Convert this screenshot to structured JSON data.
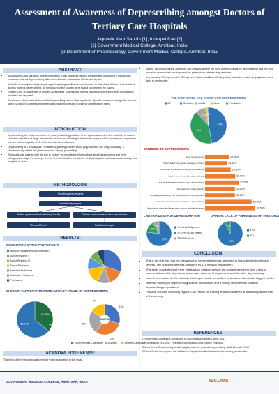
{
  "header": {
    "title": "Assessment of Awareness of Deprescribing amongst Doctors of Tertiary Care Hospitals",
    "authors": "Japmehr Kaur Sandhu[1], Inderpal Kaur[2]",
    "affiliations": [
      "[1] Government Medical College, Amritsar, India;",
      "[2]Department of Pharmacology, Government Medical College, Amritsar, India"
    ]
  },
  "abstract": {
    "heading": "ABSTRACT:",
    "items": [
      "Background: Drug utilization research presents a way to assess rational drug therapy in a patient. This includes measures such as deprescribing, taken to ameliorate undesirable effects of drug use.",
      "Methods: A descriptive study was designed by using a validated questionnaire to look at the attitudes and beliefs of doctors towards deprescribing. All the doctors in the country were invited to complete the survey.",
      "Results: Lack of awareness of concept appreciated. The biggest barriers towards deprescribing were successfully identified and reported.",
      "Conclusion: Most doctors believe that deprescribing is beneficial to patients. Specific measures to target the barriers faced by doctors to deprescribing medications are necessary to improve deprescribing rates."
    ]
  },
  "introduction": {
    "heading": "INTRODUCTION:",
    "items": [
      "Deprescribing, the basic component of good prescribing practices is the systematic review and reduction of dose or complete cessation of drugs intended for chronic use following a risk benefit analysis while remaining in congruence with the patient's quality of life and economic circumstances.",
      "Deprescribing is a crucial pillar in matters of growing concern about polypharmacy and drug cascading. It simultaneously affects the phenomenon of \"legacy prescribing\".",
      "This study was planned with the aim to explore the knowledge of prescribers about deprescribing and their willingness to adopt the concept. It is the first time that the prevalence of deprescription was assessed at tertiary care hospitals in India."
    ]
  },
  "methodology": {
    "heading": "METHODOLOGY:",
    "nodes": [
      "Questionnaire prepared",
      "Validated by experts",
      "Written questionnaire to teaching faculty",
      "Online questionnaire to other practitioners",
      "Microsoft Excel",
      "Statistical Analysis"
    ]
  },
  "results": {
    "heading": "RESULTS:",
    "designation": {
      "type": "pie",
      "title": "DESIGNATION OF THE PARTICIPANTS",
      "categories": [
        "Medical Practitioners (non-teaching)",
        "Junior Resident II",
        "Junior Resident III",
        "Senior Residents",
        "Assistant Professors",
        "Associate Professors",
        "Professors"
      ],
      "values": [
        30,
        15,
        12,
        15,
        12,
        8,
        8
      ],
      "colors": [
        "#4472c4",
        "#ed7d31",
        "#a5a5a5",
        "#ffc000",
        "#5b9bd5",
        "#70ad47",
        "#264478"
      ]
    },
    "aware_title": "WHETHER PARTICIPANTS WERE ALREADY AWARE OF DEPRESCRIBING",
    "aware": {
      "type": "pie",
      "categories": [
        "NO",
        "YES"
      ],
      "values": [
        36.36,
        63.64
      ],
      "value_labels": [
        "36.36%",
        "63.64%"
      ],
      "colors": [
        "#1f6f3f",
        "#2e75b6"
      ]
    },
    "source": {
      "type": "pie",
      "center_label": "SOURCE",
      "categories": [
        "Conferences",
        "Colleagues",
        "Journals",
        "Degree Curriculum"
      ],
      "values": [
        13,
        13,
        11,
        7
      ],
      "value_labels": [
        "13%",
        "13%",
        "11%",
        "7%"
      ],
      "colors": [
        "#4472c4",
        "#ed7d31",
        "#a5a5a5",
        "#ffc000"
      ]
    }
  },
  "findings": [
    "Statins, Benzodiazepines, antibiotics and analgesics were the most preferred drugs for deprescription and the most prevalent reason cited was to protect the patient from adverse drug reactions.",
    "A resounding 79% agreed and 93% agreed that comorbidities affecting drug metabolism make the physicians more likely to deprescribe."
  ],
  "age_chart": {
    "type": "pie",
    "title": "THE PREFERRED AGE GROUP FOR DEPRESCRIBING",
    "categories": [
      "All",
      "Geriatrics",
      "Adults",
      "None",
      "Paediatrics"
    ],
    "values": [
      47,
      41,
      9,
      2,
      1
    ],
    "value_labels": [
      "47%",
      "41%",
      "9%",
      "2%",
      "1%"
    ],
    "colors": [
      "#2e75b6",
      "#2e9e5b",
      "#a5a5a5",
      "#ffc000",
      "#5b9bd5"
    ]
  },
  "barriers": {
    "type": "bar",
    "title": "BARRIERS TO DEPRESCRIBING",
    "color": "#ed7d31",
    "categories": [
      "Lack of experience",
      "Patient belief that you are giving up on them",
      "Pressured to prescribe according to guidelines",
      "Lack of time to consider deprescribing",
      "Lack of beneficial information about deprescribing",
      "Necessity from patient/family",
      "Managing relationship with original doctor who prescribed",
      "Concerned about adverse events after deprescribing",
      "Medications prescribed by another doctor, rationale unknown"
    ],
    "values": [
      26.8,
      24.6,
      28.8,
      33.9,
      37.7,
      33.6,
      33.6,
      52.3,
      56.5
    ],
    "value_labels": [
      "26.80%",
      "24.60%",
      "28.80%",
      "33.90%",
      "37.70%",
      "33.60%",
      "33.60%",
      "52.30%",
      "56.50%"
    ]
  },
  "criteria": {
    "type": "pie",
    "title": "CRITERIA USED FOR DEPRESCRIPTION",
    "categories": [
      "Personal Judgement",
      "STOPP START criteria",
      "BEERS criteria"
    ],
    "values": [
      77,
      15,
      8
    ],
    "value_labels": [
      "77%",
      "15%",
      "8%"
    ],
    "colors": [
      "#2e75b6",
      "#2e9e5b",
      "#a5a5a5"
    ]
  },
  "opinion": {
    "type": "pie",
    "title": "OPINION: LACK OF AWARENESS OF THE CONCEPT?",
    "categories": [
      "YES",
      "NO"
    ],
    "values": [
      93,
      7
    ],
    "value_labels": [
      "93%",
      "7%"
    ],
    "colors": [
      "#2e75b6",
      "#2e9e5b"
    ]
  },
  "conclusion": {
    "heading": "CONCLUSION:",
    "items": [
      "This is the first time that the prevalence of deprescription was assessed in Indian tertiary healthcare centres. The questionnaire was answered by 118 medical practitioners.",
      "This study concludes that there exists a lack of awareness of the concept stemming from a lack of representation in the degree curriculum and absence of department set criteria for deprescribing.",
      "Lack of information on the rationale behind previously prescribed medications labelled as biggest hurdle.",
      "Need for training on deprescribing specific medications and a strong departmental focus on deprescribing emphasized.",
      "Possible solution: achieving regular CME, credit via training and events aimed at sustaining awareness of the concept."
    ]
  },
  "references": {
    "heading": "REFERENCES:",
    "items": [
      "[1] World Health Organization. Introduction to Drug Utilization Research. WHO 2003.",
      "[2] Krishnaswamy et al. 2017. Prescription of Unneeded Drugs. Indian J Pharmacol.",
      "[3] Scott IA et al. Reducing inappropriate polypharmacy: the process of deprescribing. JAMA Intern Med 2015.",
      "[4] Reeve E et al. Development and validation of the patients' attitudes towards deprescribing questionnaire."
    ]
  },
  "acknowledgements": {
    "heading": "ACKNOWLEDGEMENTS:",
    "text": "Thanking all the medical practitioners for their participation in this study."
  },
  "footer": {
    "institution": "GOVERNMENT MEDICAL COLLEGE, AMRITSAR, INDIA",
    "conference": "ISCOMS"
  }
}
